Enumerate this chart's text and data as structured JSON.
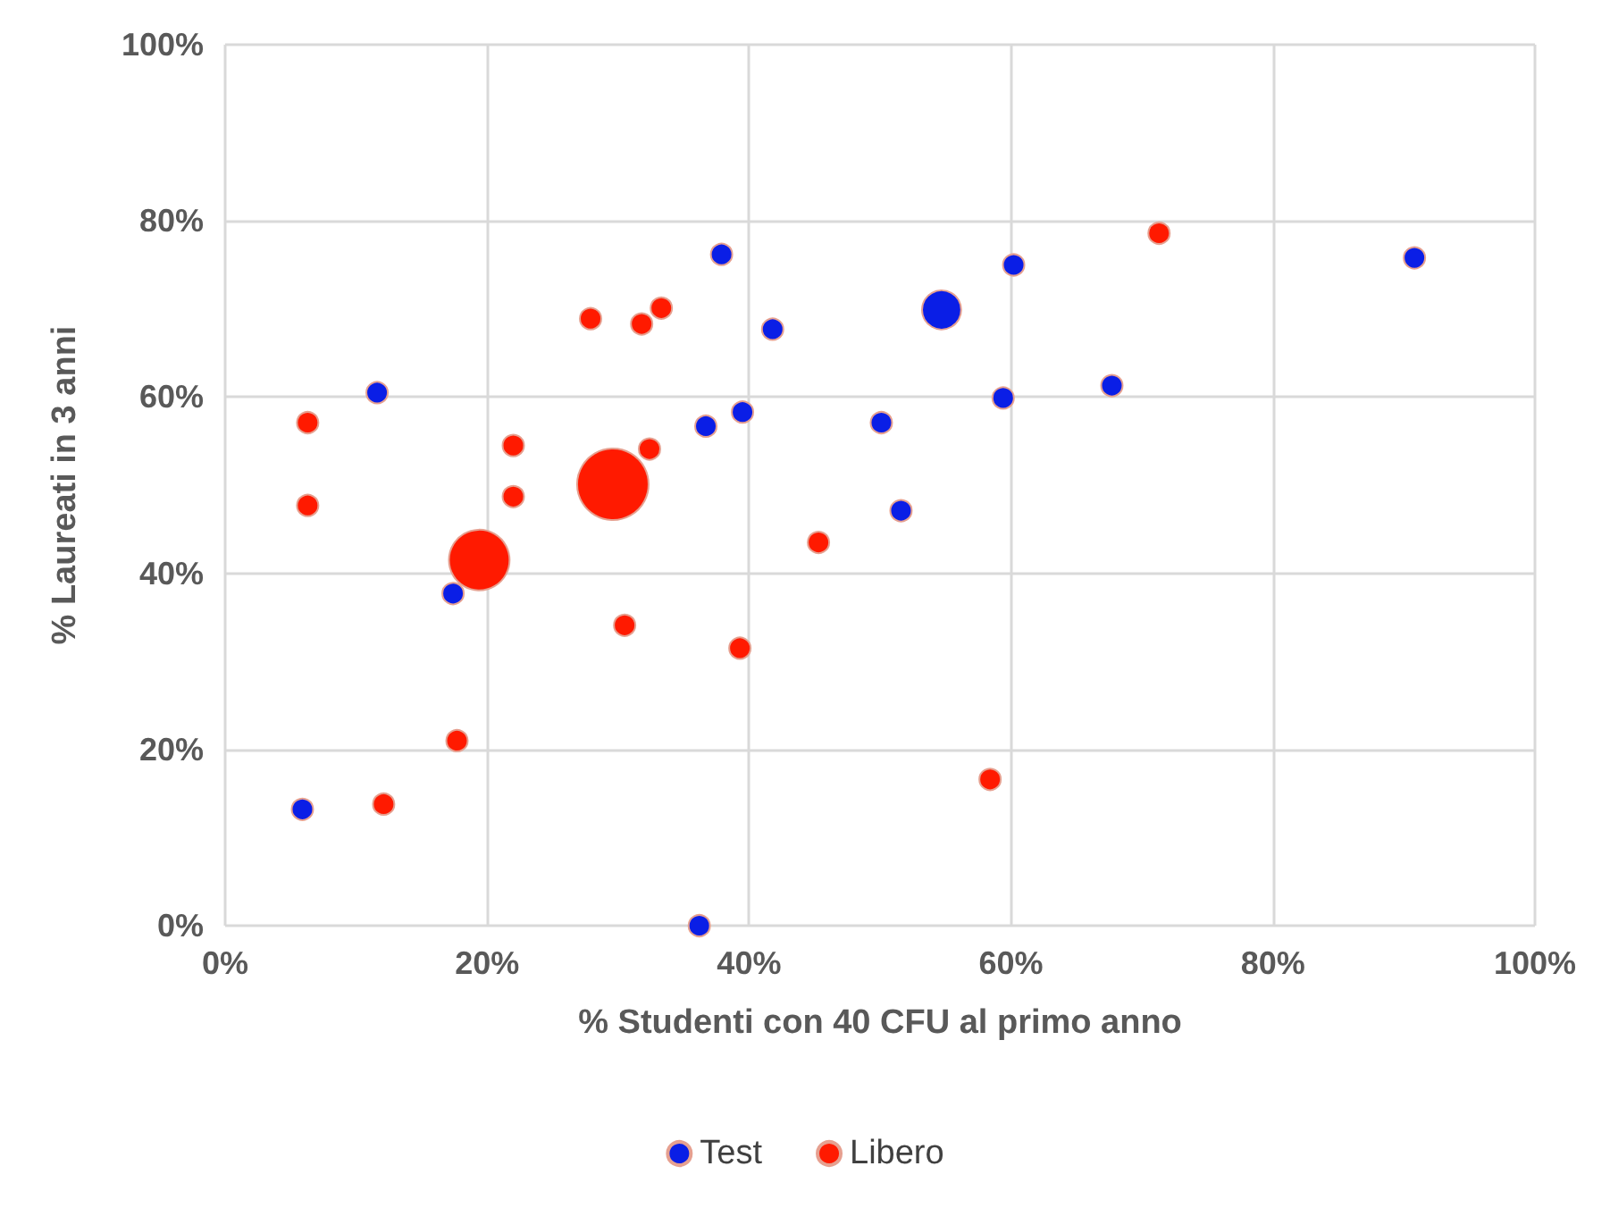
{
  "chart_data": {
    "type": "bubble",
    "xlabel": "% Studenti con 40 CFU al primo anno",
    "ylabel": "% Laureati in 3 anni",
    "xlim": [
      0,
      100
    ],
    "ylim": [
      0,
      100
    ],
    "xticks": [
      {
        "value": 0,
        "label": "0%"
      },
      {
        "value": 20,
        "label": "20%"
      },
      {
        "value": 40,
        "label": "40%"
      },
      {
        "value": 60,
        "label": "60%"
      },
      {
        "value": 80,
        "label": "80%"
      },
      {
        "value": 100,
        "label": "100%"
      }
    ],
    "yticks": [
      {
        "value": 0,
        "label": "0%"
      },
      {
        "value": 20,
        "label": "20%"
      },
      {
        "value": 40,
        "label": "40%"
      },
      {
        "value": 60,
        "label": "60%"
      },
      {
        "value": 80,
        "label": "80%"
      },
      {
        "value": 100,
        "label": "100%"
      }
    ],
    "grid": true,
    "legend": "bottom",
    "marker": "circle",
    "series": [
      {
        "name": "Test",
        "color": "#0a1ee6",
        "x": [
          5.9,
          11.6,
          17.4,
          36.2,
          36.7,
          37.9,
          39.5,
          41.8,
          50.1,
          51.6,
          54.7,
          59.4,
          60.2,
          67.7,
          90.8
        ],
        "values": [
          13.2,
          60.5,
          37.7,
          0,
          56.7,
          76.2,
          58.3,
          67.7,
          57.1,
          47.1,
          69.9,
          59.9,
          75.0,
          61.3,
          75.8
        ],
        "sizes": [
          0.09,
          0.09,
          0.09,
          0.09,
          0.09,
          0.09,
          0.09,
          0.09,
          0.09,
          0.09,
          0.3,
          0.09,
          0.09,
          0.09,
          0.09
        ]
      },
      {
        "name": "Libero",
        "color": "#ff1a00",
        "x": [
          6.3,
          6.3,
          12.1,
          17.7,
          19.4,
          22.0,
          22.0,
          27.9,
          29.6,
          30.5,
          31.8,
          32.4,
          33.3,
          39.3,
          45.3,
          58.4,
          71.3
        ],
        "values": [
          57.1,
          47.7,
          13.8,
          21.0,
          41.5,
          54.5,
          48.7,
          68.9,
          50.1,
          34.1,
          68.3,
          54.1,
          70.1,
          31.5,
          43.5,
          16.6,
          78.6
        ],
        "sizes": [
          0.09,
          0.09,
          0.09,
          0.09,
          0.72,
          0.09,
          0.09,
          0.09,
          1,
          0.09,
          0.09,
          0.09,
          0.09,
          0.09,
          0.09,
          0.09,
          0.09
        ]
      }
    ]
  }
}
